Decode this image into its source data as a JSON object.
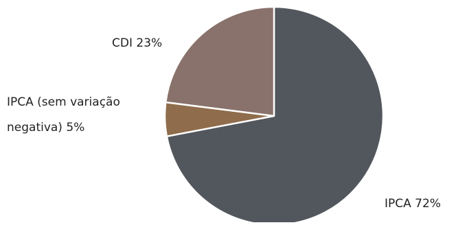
{
  "chart_data": {
    "type": "pie",
    "title": "",
    "start_angle": "12 o'clock",
    "direction": "clockwise",
    "legend": "none",
    "slices": [
      {
        "label": "IPCA",
        "value": 72,
        "label_lines": [
          "IPCA 72%"
        ],
        "color": "#52575D"
      },
      {
        "label": "IPCA (sem variação negativa)",
        "value": 5,
        "label_lines": [
          "IPCA (sem variação",
          "negativa) 5%"
        ],
        "color": "#8F6D4C"
      },
      {
        "label": "CDI",
        "value": 23,
        "label_lines": [
          "CDI 23%"
        ],
        "color": "#89726B"
      }
    ]
  }
}
